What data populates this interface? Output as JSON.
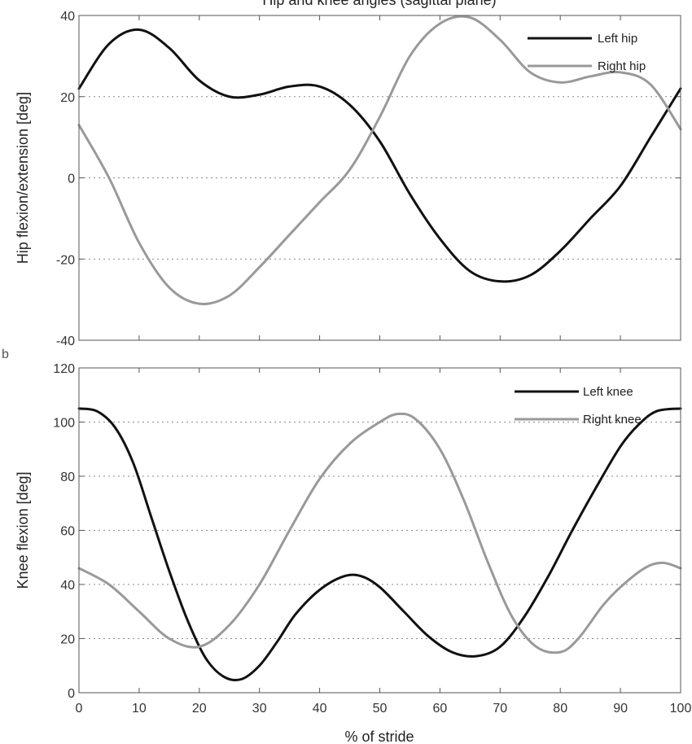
{
  "figure": {
    "title": "Hip and knee angles (sagittal plane)",
    "xlabel": "% of stride",
    "panel_tag_bottom": "b"
  },
  "chart_data": [
    {
      "type": "line",
      "title": "Hip and knee angles (sagittal plane)",
      "xlabel": "",
      "ylabel": "Hip flexion/extension [deg]",
      "xlim": [
        0,
        100
      ],
      "ylim": [
        -40,
        40
      ],
      "xticks": [
        0,
        10,
        20,
        30,
        40,
        50,
        60,
        70,
        80,
        90,
        100
      ],
      "yticks": [
        -40,
        -20,
        0,
        20,
        40
      ],
      "y_grid": "dotted",
      "legend": "top-right",
      "series": [
        {
          "name": "Left hip",
          "color": "#111111",
          "x": [
            0,
            5,
            10,
            15,
            20,
            25,
            30,
            35,
            40,
            45,
            50,
            55,
            60,
            65,
            70,
            75,
            80,
            85,
            90,
            95,
            100
          ],
          "y": [
            22,
            33,
            36.5,
            32,
            24,
            20,
            20.5,
            22.5,
            22.5,
            18,
            9,
            -4,
            -15,
            -23,
            -25.5,
            -24,
            -18,
            -10,
            -2,
            10,
            22
          ]
        },
        {
          "name": "Right hip",
          "color": "#999999",
          "x": [
            0,
            5,
            10,
            15,
            20,
            25,
            30,
            35,
            40,
            45,
            50,
            55,
            60,
            65,
            70,
            75,
            80,
            85,
            90,
            95,
            100
          ],
          "y": [
            13,
            0,
            -16,
            -27,
            -31,
            -29,
            -22,
            -14,
            -6,
            2,
            15,
            30,
            38,
            39.5,
            34,
            26,
            23.5,
            25,
            26,
            23,
            12
          ]
        }
      ]
    },
    {
      "type": "line",
      "title": "",
      "xlabel": "% of stride",
      "ylabel": "Knee flexion [deg]",
      "xlim": [
        0,
        100
      ],
      "ylim": [
        0,
        120
      ],
      "xticks": [
        0,
        10,
        20,
        30,
        40,
        50,
        60,
        70,
        80,
        90,
        100
      ],
      "yticks": [
        0,
        20,
        40,
        60,
        80,
        100,
        120
      ],
      "y_grid": "dotted",
      "legend": "top-right",
      "series": [
        {
          "name": "Left knee",
          "color": "#111111",
          "x": [
            0,
            3,
            6,
            9,
            12,
            15,
            18,
            21,
            24,
            27,
            30,
            33,
            36,
            40,
            44,
            47,
            50,
            54,
            58,
            62,
            66,
            70,
            74,
            78,
            82,
            86,
            90,
            93,
            96,
            100
          ],
          "y": [
            105,
            104,
            98,
            85,
            65,
            45,
            27,
            13,
            6,
            5,
            10,
            19,
            29,
            38,
            43,
            43,
            39,
            30,
            21,
            15,
            13.5,
            17,
            28,
            43,
            60,
            76,
            91,
            99,
            104,
            105
          ]
        },
        {
          "name": "Right knee",
          "color": "#999999",
          "x": [
            0,
            5,
            10,
            15,
            20,
            25,
            30,
            35,
            40,
            45,
            50,
            53,
            56,
            60,
            64,
            68,
            72,
            76,
            80,
            83,
            87,
            90,
            94,
            97,
            100
          ],
          "y": [
            46,
            40,
            30,
            20,
            17,
            25,
            40,
            60,
            79,
            92,
            100,
            103,
            101,
            90,
            71,
            48,
            28,
            17,
            15,
            20,
            32,
            39,
            46,
            48,
            46
          ]
        }
      ]
    }
  ]
}
